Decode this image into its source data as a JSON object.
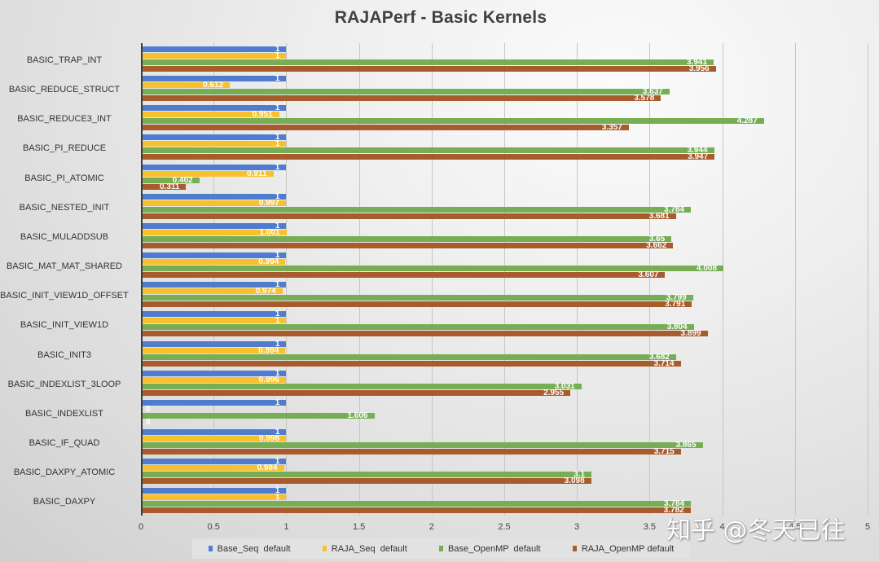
{
  "chart_data": {
    "type": "bar",
    "orientation": "horizontal",
    "title": "RAJAPerf - Basic Kernels",
    "xlabel": "",
    "ylabel": "",
    "xlim": [
      0,
      5
    ],
    "xticks": [
      "0",
      "0.5",
      "1",
      "1.5",
      "2",
      "2.5",
      "3",
      "3.5",
      "4",
      "4.5",
      "5"
    ],
    "grid": true,
    "legend_position": "bottom",
    "categories": [
      "BASIC_TRAP_INT",
      "BASIC_REDUCE_STRUCT",
      "BASIC_REDUCE3_INT",
      "BASIC_PI_REDUCE",
      "BASIC_PI_ATOMIC",
      "BASIC_NESTED_INIT",
      "BASIC_MULADDSUB",
      "BASIC_MAT_MAT_SHARED",
      "BASIC_INIT_VIEW1D_OFFSET",
      "BASIC_INIT_VIEW1D",
      "BASIC_INIT3",
      "BASIC_INDEXLIST_3LOOP",
      "BASIC_INDEXLIST",
      "BASIC_IF_QUAD",
      "BASIC_DAXPY_ATOMIC",
      "BASIC_DAXPY"
    ],
    "series": [
      {
        "name": "Base_Seq  default",
        "color": "#4f7ccc",
        "values": [
          1,
          1,
          1,
          1,
          1,
          1,
          1,
          1,
          1,
          1,
          1,
          1,
          1,
          1,
          1,
          1
        ]
      },
      {
        "name": "RAJA_Seq  default",
        "color": "#f8c12c",
        "values": [
          1,
          0.612,
          0.951,
          1,
          0.911,
          0.997,
          1.001,
          0.994,
          0.974,
          1,
          0.994,
          0.996,
          0,
          0.998,
          0.984,
          1
        ]
      },
      {
        "name": "Base_OpenMP  default",
        "color": "#77ae55",
        "values": [
          3.941,
          3.637,
          4.287,
          3.944,
          0.402,
          3.784,
          3.65,
          4.008,
          3.799,
          3.804,
          3.682,
          3.031,
          1.606,
          3.865,
          3.1,
          3.784
        ]
      },
      {
        "name": "RAJA_OpenMP default",
        "color": "#a85c2c",
        "values": [
          3.956,
          3.578,
          3.357,
          3.947,
          0.311,
          3.681,
          3.662,
          3.607,
          3.791,
          3.899,
          3.714,
          2.955,
          0,
          3.715,
          3.098,
          3.782
        ]
      }
    ],
    "value_labels": [
      [
        "1",
        "1",
        "3.941",
        "3.956"
      ],
      [
        "1",
        "0.612",
        "3.637",
        "3.578"
      ],
      [
        "1",
        "0.951",
        "4.287",
        "3.357"
      ],
      [
        "1",
        "1",
        "3.944",
        "3.947"
      ],
      [
        "1",
        "0.911",
        "0.402",
        "0.311"
      ],
      [
        "1",
        "0.997",
        "3.784",
        "3.681"
      ],
      [
        "1",
        "1.001",
        "3.65",
        "3.662"
      ],
      [
        "1",
        "0.994",
        "4.008",
        "3.607"
      ],
      [
        "1",
        "0.974",
        "3.799",
        "3.791"
      ],
      [
        "1",
        "1",
        "3.804",
        "3.899"
      ],
      [
        "1",
        "0.994",
        "3.682",
        "3.714"
      ],
      [
        "1",
        "0.996",
        "3.031",
        "2.955"
      ],
      [
        "1",
        "0",
        "1.606",
        "0"
      ],
      [
        "1",
        "0.998",
        "3.865",
        "3.715"
      ],
      [
        "1",
        "0.984",
        "3.1",
        "3.098"
      ],
      [
        "1",
        "1",
        "3.784",
        "3.782"
      ]
    ]
  },
  "legend": [
    {
      "label": "Base_Seq  default",
      "color": "#4f7ccc"
    },
    {
      "label": "RAJA_Seq  default",
      "color": "#f8c12c"
    },
    {
      "label": "Base_OpenMP  default",
      "color": "#77ae55"
    },
    {
      "label": "RAJA_OpenMP default",
      "color": "#a85c2c"
    }
  ],
  "watermark": "知乎 @冬天已往"
}
